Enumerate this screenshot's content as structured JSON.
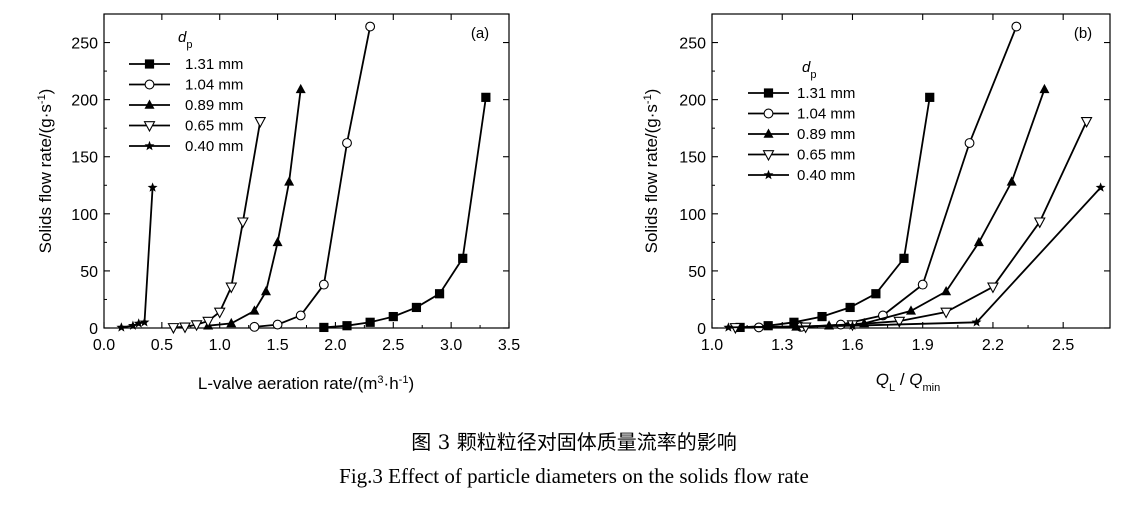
{
  "figure_caption_cn": "图 3  颗粒粒径对固体质量流率的影响",
  "figure_caption_en": "Fig.3  Effect of particle diameters on the solids flow rate",
  "chart_data": [
    {
      "type": "line",
      "panel_label": "(a)",
      "xlabel": "L-valve aeration rate/(m³·h⁻¹)",
      "ylabel": "Solids flow rate/(g·s⁻¹)",
      "xlim": [
        0.0,
        3.5
      ],
      "ylim": [
        0,
        275
      ],
      "xticks": [
        "0.0",
        "0.5",
        "1.0",
        "1.5",
        "2.0",
        "2.5",
        "3.0",
        "3.5"
      ],
      "yticks": [
        "0",
        "50",
        "100",
        "150",
        "200",
        "250"
      ],
      "legend_title": "dp",
      "legend_position": "top-left",
      "series": [
        {
          "name": "1.31 mm",
          "marker": "square-filled",
          "x": [
            1.9,
            2.1,
            2.3,
            2.5,
            2.7,
            2.9,
            3.1,
            3.3
          ],
          "y": [
            0.5,
            2,
            5,
            10,
            18,
            30,
            61,
            202
          ]
        },
        {
          "name": "1.04 mm",
          "marker": "circle-open",
          "x": [
            1.3,
            1.5,
            1.7,
            1.9,
            2.1,
            2.3
          ],
          "y": [
            1,
            3,
            11,
            38,
            162,
            264
          ]
        },
        {
          "name": "0.89 mm",
          "marker": "triangle-up-filled",
          "x": [
            0.9,
            1.1,
            1.3,
            1.4,
            1.5,
            1.6,
            1.7
          ],
          "y": [
            2,
            4,
            15,
            32,
            75,
            128,
            209
          ]
        },
        {
          "name": "0.65 mm",
          "marker": "triangle-down-open",
          "x": [
            0.6,
            0.7,
            0.8,
            0.9,
            1.0,
            1.1,
            1.2,
            1.35
          ],
          "y": [
            0.5,
            1,
            3,
            6,
            14,
            36,
            93,
            181
          ]
        },
        {
          "name": "0.40 mm",
          "marker": "star-filled",
          "x": [
            0.15,
            0.25,
            0.3,
            0.35,
            0.42
          ],
          "y": [
            0.5,
            2,
            4,
            5,
            123
          ]
        }
      ]
    },
    {
      "type": "line",
      "panel_label": "(b)",
      "xlabel": "QL / Qmin",
      "ylabel": "Solids flow rate/(g·s⁻¹)",
      "xlim": [
        1.0,
        2.7
      ],
      "ylim": [
        0,
        275
      ],
      "xticks": [
        "1.0",
        "1.3",
        "1.6",
        "1.9",
        "2.2",
        "2.5"
      ],
      "yticks": [
        "0",
        "50",
        "100",
        "150",
        "200",
        "250"
      ],
      "legend_title": "dp",
      "legend_position": "top-left",
      "series": [
        {
          "name": "1.31 mm",
          "marker": "square-filled",
          "x": [
            1.12,
            1.24,
            1.35,
            1.47,
            1.59,
            1.7,
            1.82,
            1.93
          ],
          "y": [
            0.5,
            2,
            5,
            10,
            18,
            30,
            61,
            202
          ]
        },
        {
          "name": "1.04 mm",
          "marker": "circle-open",
          "x": [
            1.2,
            1.38,
            1.55,
            1.73,
            1.9,
            2.1,
            2.3
          ],
          "y": [
            0.5,
            1,
            3,
            11,
            38,
            162,
            264
          ]
        },
        {
          "name": "0.89 mm",
          "marker": "triangle-up-filled",
          "x": [
            1.36,
            1.5,
            1.65,
            1.85,
            2.0,
            2.14,
            2.28,
            2.42
          ],
          "y": [
            1,
            2,
            4,
            15,
            32,
            75,
            128,
            209
          ]
        },
        {
          "name": "0.65 mm",
          "marker": "triangle-down-open",
          "x": [
            1.1,
            1.4,
            1.6,
            1.8,
            2.0,
            2.2,
            2.4,
            2.6
          ],
          "y": [
            0.5,
            1,
            3,
            6,
            14,
            36,
            93,
            181
          ]
        },
        {
          "name": "0.40 mm",
          "marker": "star-filled",
          "x": [
            1.07,
            1.6,
            2.13,
            2.66
          ],
          "y": [
            0.5,
            2,
            5,
            123
          ]
        }
      ]
    }
  ]
}
